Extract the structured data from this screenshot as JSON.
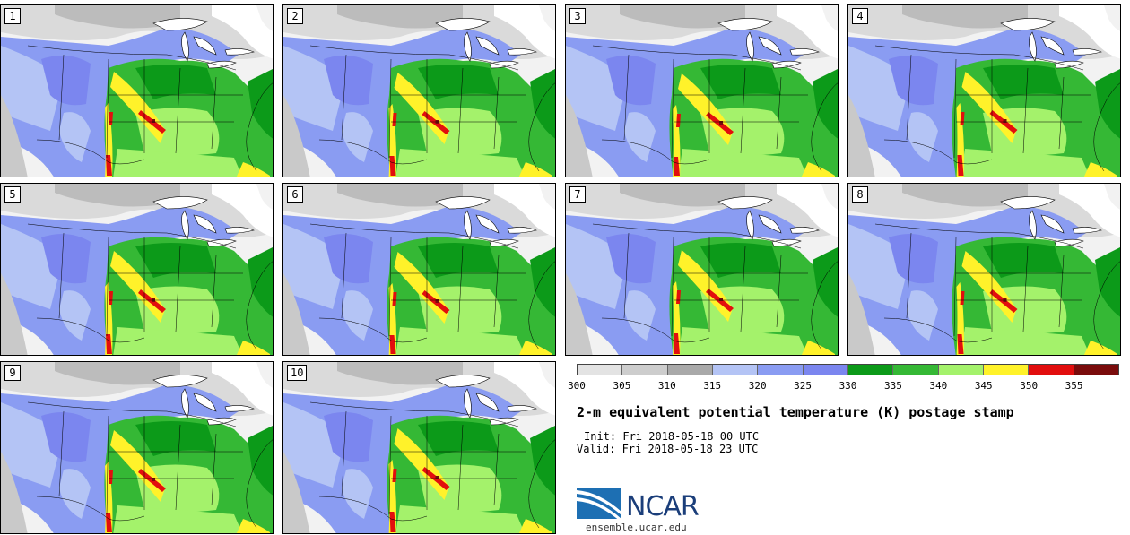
{
  "panels": [
    {
      "label": "1"
    },
    {
      "label": "2"
    },
    {
      "label": "3"
    },
    {
      "label": "4"
    },
    {
      "label": "5"
    },
    {
      "label": "6"
    },
    {
      "label": "7"
    },
    {
      "label": "8"
    },
    {
      "label": "9"
    },
    {
      "label": "10"
    }
  ],
  "colorbar": {
    "colors": [
      "#e3e3e3",
      "#cdcdcd",
      "#a9a9a9",
      "#b4c4f5",
      "#8a9cf2",
      "#7b86ef",
      "#0c9a19",
      "#35b835",
      "#a4f26b",
      "#fff22a",
      "#e20e0e",
      "#7a0c0c"
    ],
    "ticks": [
      "300",
      "305",
      "310",
      "315",
      "320",
      "325",
      "330",
      "335",
      "340",
      "345",
      "350",
      "355"
    ],
    "range": [
      300,
      360
    ]
  },
  "title": "2-m equivalent potential temperature (K) postage stamp",
  "init": "Init: Fri 2018-05-18 00 UTC",
  "valid": "Valid: Fri 2018-05-18 23 UTC",
  "logo": {
    "text": "NCAR",
    "color": "#1b3e7a",
    "swoosh_color": "#1d6fb3"
  },
  "site": "ensemble.ucar.edu",
  "map_colors": {
    "ocean": "#f2f2f2",
    "land_cold": "#dadada",
    "north_gray": "#bcbcbc",
    "pale_blue": "#b4c4f5",
    "mid_blue": "#8a9cf2",
    "deep_blue": "#7b86ef",
    "dark_green": "#0c9a19",
    "green": "#35b835",
    "light_green": "#a4f26b",
    "yellow": "#fff22a",
    "red": "#e20e0e",
    "dark_red": "#7a0c0c",
    "lakes": "#ffffff"
  }
}
